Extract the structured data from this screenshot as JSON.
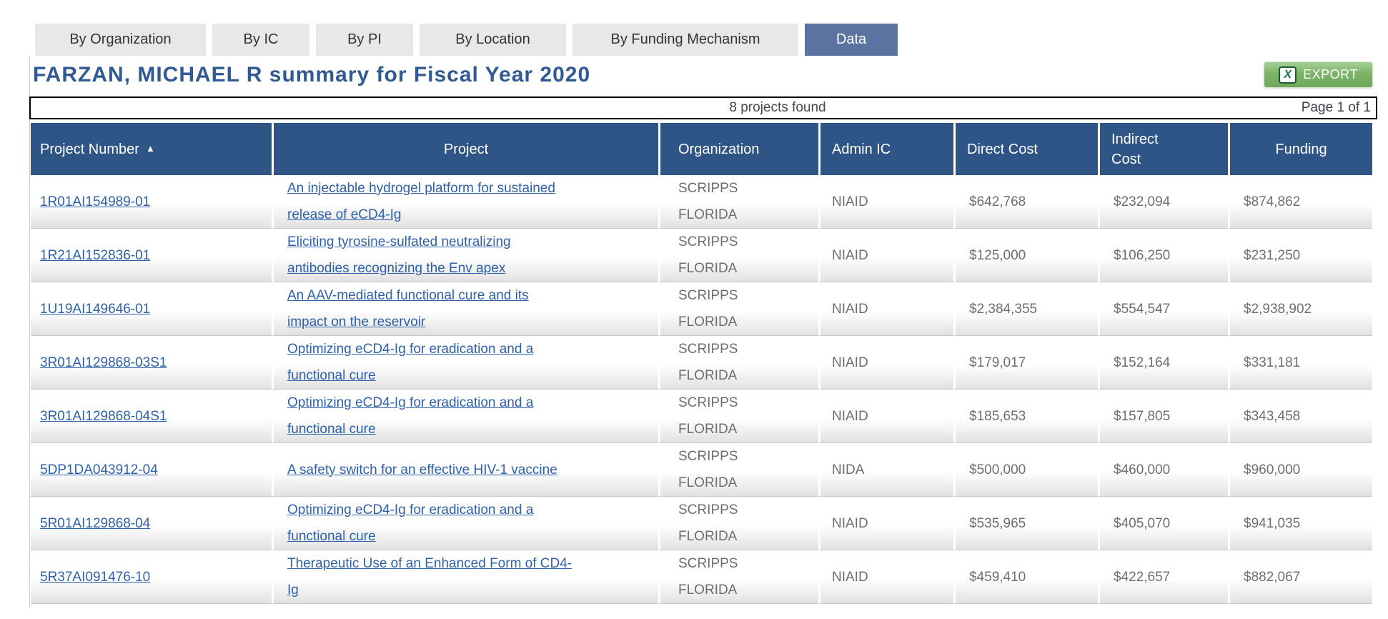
{
  "tabs": [
    {
      "label": "By Organization",
      "active": false
    },
    {
      "label": "By IC",
      "active": false
    },
    {
      "label": "By PI",
      "active": false
    },
    {
      "label": "By Location",
      "active": false
    },
    {
      "label": "By Funding Mechanism",
      "active": false
    },
    {
      "label": "Data",
      "active": true
    }
  ],
  "header": {
    "title": "FARZAN, MICHAEL R summary for Fiscal Year 2020",
    "export_label": "EXPORT",
    "excel_icon_glyph": "X"
  },
  "results_bar": {
    "count_text": "8 projects found",
    "page_text": "Page 1 of 1"
  },
  "table": {
    "columns": [
      "Project Number",
      "Project",
      "Organization",
      "Admin IC",
      "Direct Cost",
      "Indirect\nCost",
      "Funding"
    ],
    "sort_icon": "▲",
    "rows": [
      {
        "project_number": "1R01AI154989-01",
        "project": "An injectable hydrogel platform for sustained\nrelease of eCD4-Ig",
        "organization": "SCRIPPS\nFLORIDA",
        "admin_ic": "NIAID",
        "direct_cost": "$642,768",
        "indirect_cost": "$232,094",
        "funding": "$874,862"
      },
      {
        "project_number": "1R21AI152836-01",
        "project": "Eliciting tyrosine-sulfated neutralizing\nantibodies recognizing the Env apex",
        "organization": "SCRIPPS\nFLORIDA",
        "admin_ic": "NIAID",
        "direct_cost": "$125,000",
        "indirect_cost": "$106,250",
        "funding": "$231,250"
      },
      {
        "project_number": "1U19AI149646-01",
        "project": "An AAV-mediated functional cure and its\nimpact on the reservoir",
        "organization": "SCRIPPS\nFLORIDA",
        "admin_ic": "NIAID",
        "direct_cost": "$2,384,355",
        "indirect_cost": "$554,547",
        "funding": "$2,938,902"
      },
      {
        "project_number": "3R01AI129868-03S1",
        "project": "Optimizing eCD4-Ig for eradication and a\nfunctional cure",
        "organization": "SCRIPPS\nFLORIDA",
        "admin_ic": "NIAID",
        "direct_cost": "$179,017",
        "indirect_cost": "$152,164",
        "funding": "$331,181"
      },
      {
        "project_number": "3R01AI129868-04S1",
        "project": "Optimizing eCD4-Ig for eradication and a\nfunctional cure",
        "organization": "SCRIPPS\nFLORIDA",
        "admin_ic": "NIAID",
        "direct_cost": "$185,653",
        "indirect_cost": "$157,805",
        "funding": "$343,458"
      },
      {
        "project_number": "5DP1DA043912-04",
        "project": "A safety switch for an effective HIV-1 vaccine",
        "organization": "SCRIPPS\nFLORIDA",
        "admin_ic": "NIDA",
        "direct_cost": "$500,000",
        "indirect_cost": "$460,000",
        "funding": "$960,000"
      },
      {
        "project_number": "5R01AI129868-04",
        "project": "Optimizing eCD4-Ig for eradication and a\nfunctional cure",
        "organization": "SCRIPPS\nFLORIDA",
        "admin_ic": "NIAID",
        "direct_cost": "$535,965",
        "indirect_cost": "$405,070",
        "funding": "$941,035"
      },
      {
        "project_number": "5R37AI091476-10",
        "project": "Therapeutic Use of an Enhanced Form of CD4-\nIg",
        "organization": "SCRIPPS\nFLORIDA",
        "admin_ic": "NIAID",
        "direct_cost": "$459,410",
        "indirect_cost": "$422,657",
        "funding": "$882,067"
      }
    ]
  },
  "colors": {
    "header_blue": "#2E5585",
    "active_tab_blue": "#5A73A0",
    "tab_gray": "#E8E8E8",
    "title_blue": "#2F5A94",
    "link_blue": "#2F61A8",
    "body_text_gray": "#6E6E6E",
    "export_green": "#6FA85C"
  }
}
